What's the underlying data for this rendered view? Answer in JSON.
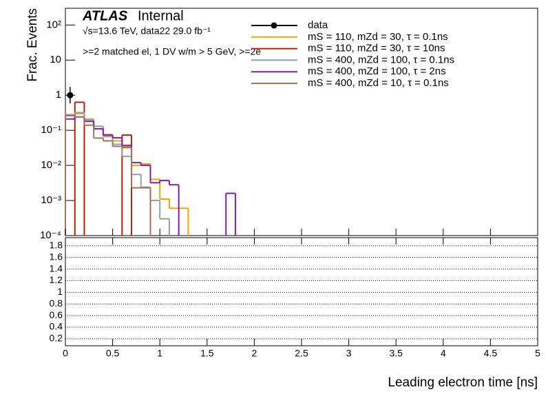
{
  "chart_data": [
    {
      "type": "histogram",
      "log_y": true,
      "ylabel": "Frac. Events",
      "annotations": [
        "ATLAS",
        "Internal",
        "√s=13.6 TeV, data22 29.0 fb⁻¹",
        ">=2 matched el, 1 DV w/m > 5 GeV, >=2e"
      ],
      "xlim": [
        0,
        5
      ],
      "ylim": [
        0.0001,
        300
      ],
      "yticks": [
        {
          "value": 100,
          "label": "10²"
        },
        10,
        1,
        {
          "value": 0.1,
          "label": "10⁻¹"
        },
        {
          "value": 0.01,
          "label": "10⁻²"
        },
        {
          "value": 0.001,
          "label": "10⁻³"
        },
        {
          "value": 0.0001,
          "label": "10⁻⁴"
        }
      ],
      "bins": [
        0,
        0.1,
        0.2,
        0.3,
        0.4,
        0.5,
        0.6,
        0.7,
        0.8,
        0.9,
        1.0,
        1.1,
        1.2,
        1.3,
        1.4,
        1.5,
        1.6,
        1.7,
        1.8,
        1.9
      ],
      "series": [
        {
          "name": "data",
          "color": "#000000",
          "style": "points",
          "values": [
            1,
            null,
            null,
            null,
            null,
            null,
            null,
            null,
            null,
            null,
            null,
            null,
            null,
            null,
            null,
            null,
            null,
            null,
            null
          ]
        },
        {
          "name": "mS = 110, mZd = 30, τ = 0.1ns",
          "color": "#f5a300",
          "style": "step",
          "values": [
            0.27,
            0.3,
            0.21,
            0.13,
            0.076,
            0.05,
            0.034,
            0.01,
            0.011,
            0.004,
            0.0011,
            0.0006,
            0.0006,
            null,
            null,
            null,
            null,
            null,
            null
          ]
        },
        {
          "name": "mS = 110, mZd = 30, τ = 10ns",
          "color": "#b82000",
          "style": "step",
          "values": [
            null,
            0.63,
            null,
            null,
            null,
            null,
            0.073,
            null,
            null,
            null,
            null,
            null,
            null,
            null,
            null,
            null,
            null,
            null,
            null
          ]
        },
        {
          "name": "mS = 400, mZd = 100, τ = 0.1ns",
          "color": "#8fa0a6",
          "style": "step",
          "values": [
            0.28,
            0.32,
            0.2,
            0.13,
            0.066,
            0.04,
            0.018,
            0.0055,
            0.0024,
            0.001,
            0.0003,
            null,
            null,
            null,
            null,
            null,
            null,
            null,
            null
          ]
        },
        {
          "name": "mS = 400, mZd = 100, τ = 2ns",
          "color": "#7a1fb0",
          "style": "step",
          "values": [
            0.21,
            0.24,
            0.18,
            0.11,
            0.073,
            0.061,
            0.037,
            0.012,
            0.01,
            0.0032,
            0.0037,
            0.0028,
            null,
            null,
            null,
            null,
            null,
            0.0016,
            null
          ]
        },
        {
          "name": "mS = 400, mZd = 10, τ = 0.1ns",
          "color": "#a6705a",
          "style": "step",
          "values": [
            0.26,
            0.24,
            0.14,
            0.06,
            0.05,
            0.035,
            0.032,
            0.0023,
            0.0023,
            null,
            null,
            null,
            null,
            null,
            null,
            null,
            null,
            null,
            null
          ]
        }
      ]
    },
    {
      "type": "ratio",
      "xlabel": "Leading electron time [ns]",
      "grid": true,
      "xlim": [
        0,
        5
      ],
      "xticks": [
        0,
        0.5,
        1,
        1.5,
        2,
        2.5,
        3,
        3.5,
        4,
        4.5,
        5
      ],
      "ylim": [
        0.08,
        1.94
      ],
      "yticks": [
        0.2,
        0.4,
        0.6,
        0.8,
        1,
        1.2,
        1.4,
        1.6,
        1.8
      ]
    }
  ]
}
